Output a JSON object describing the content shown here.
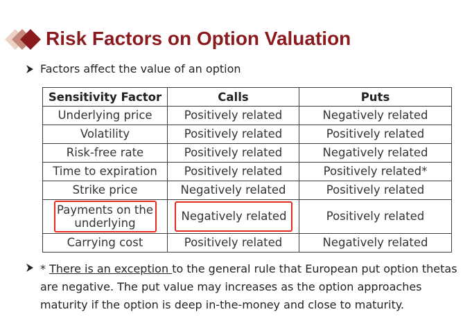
{
  "slide": {
    "title": "Risk Factors on Option Valuation",
    "bullet1": "Factors affect the value of an option",
    "colors": {
      "title": "#8b1a1f",
      "logo_dark": "#8b1a1f",
      "logo_mid": "#c07f74",
      "logo_light": "#e6c4b8",
      "highlight": "#e42a1f"
    },
    "icons": [
      "logo-diamonds-icon",
      "bullet-arrow-icon"
    ]
  },
  "table": {
    "headers": [
      "Sensitivity Factor",
      "Calls",
      "Puts"
    ],
    "rows": [
      {
        "factor": "Underlying price",
        "calls": "Positively related",
        "puts": "Negatively related"
      },
      {
        "factor": "Volatility",
        "calls": "Positively related",
        "puts": "Positively related"
      },
      {
        "factor": "Risk-free rate",
        "calls": "Positively related",
        "puts": "Negatively related"
      },
      {
        "factor": "Time to expiration",
        "calls": "Positively related",
        "puts": "Positively related*"
      },
      {
        "factor": "Strike price",
        "calls": "Negatively related",
        "puts": "Positively related"
      },
      {
        "factor": "Payments on the underlying",
        "calls": "Negatively related",
        "puts": "Positively related"
      },
      {
        "factor": "Carrying cost",
        "calls": "Positively related",
        "puts": "Negatively related"
      }
    ]
  },
  "footnote": {
    "prefix": "* ",
    "underlined": "There is an exception ",
    "rest": "to the general rule that European put option thetas are negative. The put value may increases as the option approaches maturity if the option is deep in-the-money and close to maturity."
  }
}
